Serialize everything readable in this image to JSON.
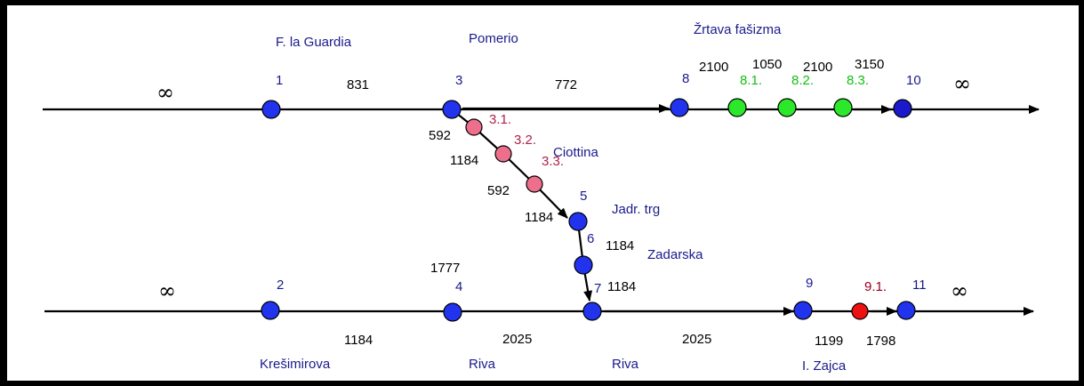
{
  "colors": {
    "main": "#2233ee",
    "dark": "#1a1acc",
    "pink": "#ee6f8c",
    "green": "#2be82b",
    "red": "#ee1111",
    "label_blue": "#1a1a8c",
    "label_pink": "#b0224a",
    "label_green": "#12c012",
    "label_darkred": "#990022"
  },
  "stops": {
    "f_la_guardia": "F. la Guardia",
    "pomerio": "Pomerio",
    "zrtava": "Žrtava fašizma",
    "ciottina": "Ciottina",
    "jadr_trg": "Jadr. trg",
    "zadarska": "Zadarska",
    "kresimirova": "Krešimirova",
    "riva_1": "Riva",
    "riva_2": "Riva",
    "zajca": "I. Zajca"
  },
  "infinity": "∞",
  "nodes": {
    "n1": "1",
    "n2": "2",
    "n3": "3",
    "n4": "4",
    "n5": "5",
    "n6": "6",
    "n7": "7",
    "n8": "8",
    "n9": "9",
    "n10": "10",
    "n11": "11",
    "n31": "3.1.",
    "n32": "3.2.",
    "n33": "3.3.",
    "n81": "8.1.",
    "n82": "8.2.",
    "n83": "8.3.",
    "n91": "9.1."
  },
  "weights": {
    "w_1_3": "831",
    "w_3_8": "772",
    "w_8_81": "2100",
    "w_81_82": "1050",
    "w_82_83": "2100",
    "w_83_10": "3150",
    "w_3_31": "592",
    "w_31_32": "1184",
    "w_32_33": "592",
    "w_33_5": "1184",
    "w_5_6": "1184",
    "w_6_7": "1184",
    "w_4_up": "1777",
    "w_2_4": "1184",
    "w_4_7": "2025",
    "w_7_9": "2025",
    "w_9_91": "1199",
    "w_91_11": "1798"
  }
}
